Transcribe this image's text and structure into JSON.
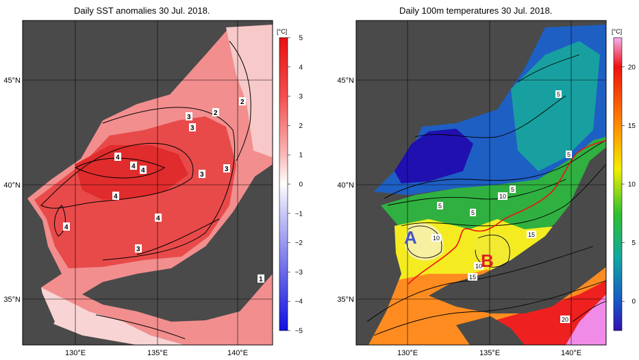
{
  "left_panel": {
    "title": "Daily SST anomalies 30 Jul. 2018.",
    "lat_labels": [
      "45°N",
      "40°N",
      "35°N"
    ],
    "lon_labels": [
      "130°E",
      "135°E",
      "140°E"
    ],
    "colorbar": {
      "unit": "[°C]",
      "ticks": [
        "5",
        "4",
        "3",
        "2",
        "1",
        "0",
        "−1",
        "−2",
        "−3",
        "−4",
        "−5"
      ],
      "range": [
        -5,
        5
      ],
      "colors": {
        "max": "#ee1111",
        "zero": "#ffffff",
        "min": "#1122ee"
      }
    },
    "contour_labels": [
      "2",
      "2",
      "3",
      "3",
      "4",
      "4",
      "4",
      "4",
      "3",
      "3",
      "4",
      "4",
      "3",
      "1"
    ]
  },
  "right_panel": {
    "title": "Daily 100m temperatures 30 Jul. 2018.",
    "lat_labels": [
      "45°N",
      "40°N",
      "35°N"
    ],
    "lon_labels": [
      "130°E",
      "135°E",
      "140°E"
    ],
    "colorbar": {
      "unit": "[°C]",
      "ticks": [
        "20",
        "15",
        "10",
        "5",
        "0"
      ],
      "range": [
        -2.5,
        22.5
      ]
    },
    "contour_labels": [
      "5",
      "5",
      "5",
      "5",
      "5",
      "10",
      "10",
      "10",
      "15",
      "15",
      "20"
    ],
    "markers": [
      {
        "label": "A",
        "color": "#4455cc"
      },
      {
        "label": "B",
        "color": "#dd2222"
      }
    ]
  },
  "colors": {
    "land": "#4a4a4a",
    "frame": "#000000",
    "front_line": "#ee1111"
  }
}
